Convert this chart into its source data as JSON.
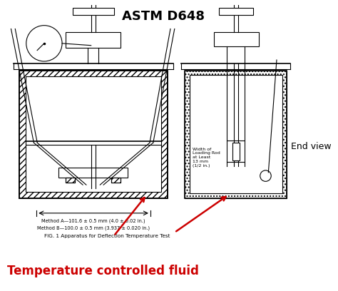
{
  "title": "ASTM D648",
  "title_fontsize": 13,
  "red_label": "Temperature controlled fluid",
  "red_label_fontsize": 12,
  "caption": "FIG. 1 Apparatus for Deflection Temperature Test",
  "method_a": "Method A—101.6 ± 0.5 mm (4.0 ± 0.02 in.)",
  "method_b": "Method B—100.0 ± 0.5 mm (3.937 ± 0.020 in.)",
  "end_view_label": "End view",
  "width_label": "Width of\nLoading Rod\nat Least\n13 mm\n(1/2 in.)",
  "bg_color": "#ffffff",
  "line_color": "#000000",
  "red_color": "#cc0000",
  "fig_width": 4.74,
  "fig_height": 4.08,
  "dpi": 100
}
